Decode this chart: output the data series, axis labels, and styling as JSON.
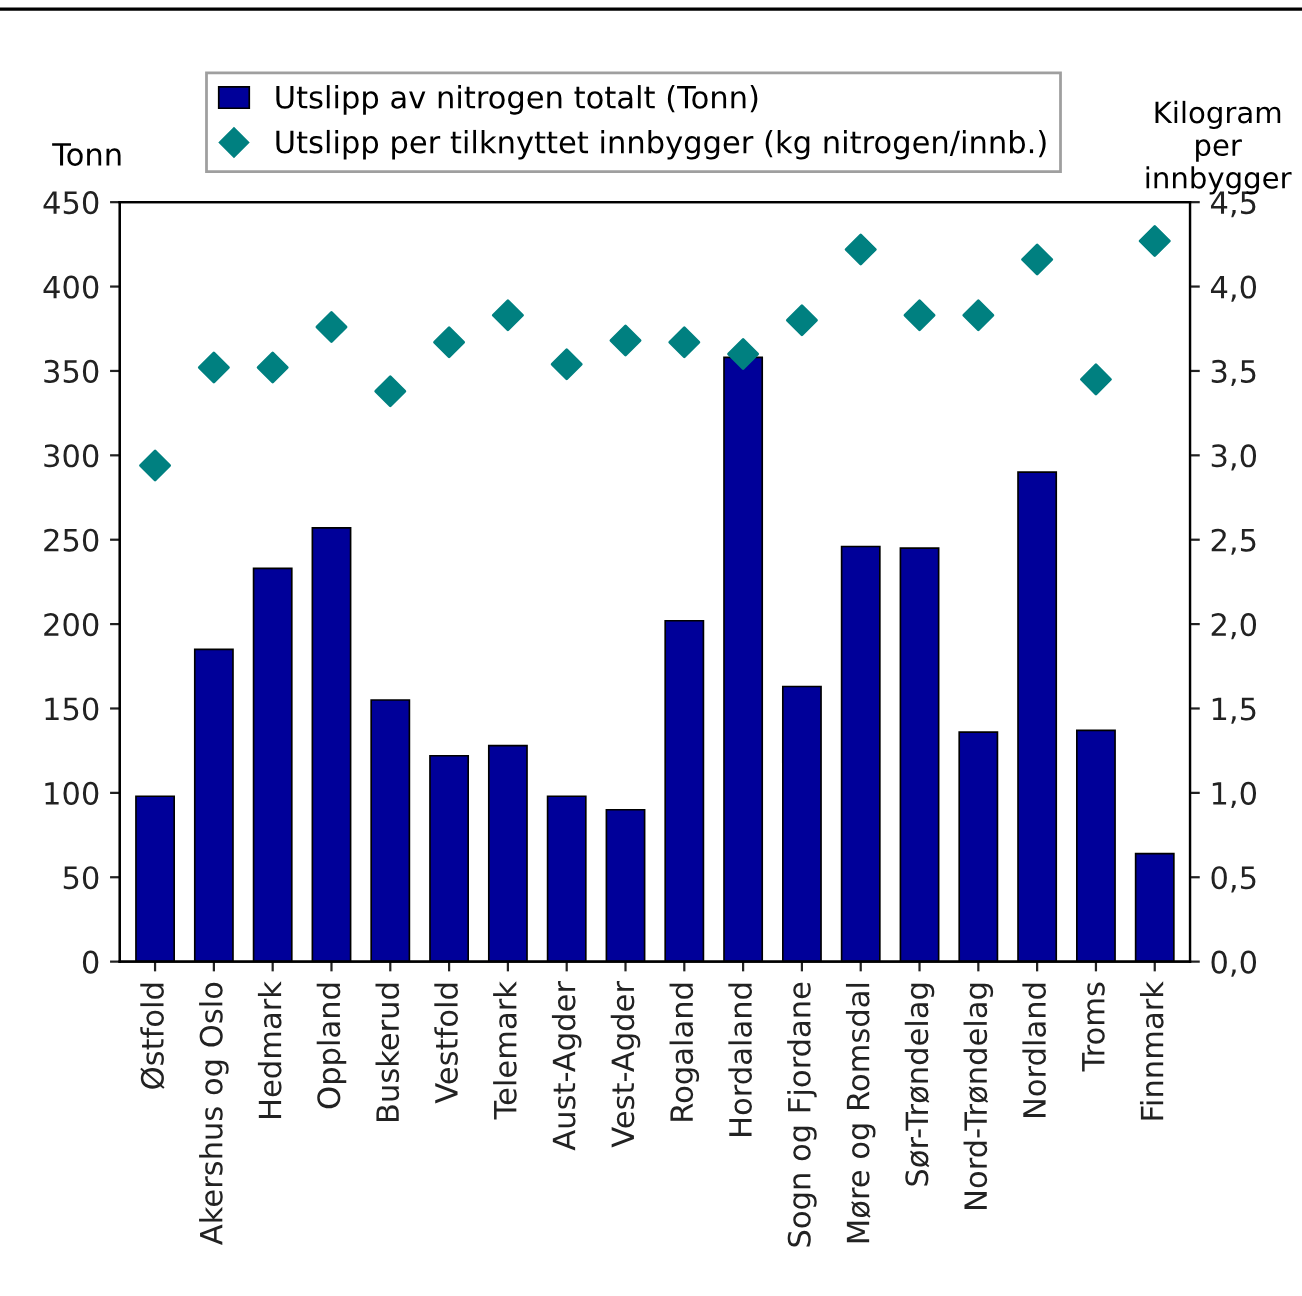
{
  "chart_data": {
    "type": "bar",
    "ylabel": "Tonn",
    "y2label": "Kilogram per innbygger",
    "categories": [
      "Østfold",
      "Akershus og Oslo",
      "Hedmark",
      "Oppland",
      "Buskerud",
      "Vestfold",
      "Telemark",
      "Aust-Agder",
      "Vest-Agder",
      "Rogaland",
      "Hordaland",
      "Sogn og Fjordane",
      "Møre og Romsdal",
      "Sør-Trøndelag",
      "Nord-Trøndelag",
      "Nordland",
      "Troms",
      "Finnmark"
    ],
    "series": [
      {
        "name": "Utslipp av nitrogen totalt (Tonn)",
        "color": "#000099",
        "values": [
          98,
          185,
          233,
          257,
          155,
          122,
          128,
          98,
          90,
          202,
          358,
          163,
          246,
          245,
          136,
          290,
          137,
          64
        ]
      },
      {
        "name": "Utslipp per tilknyttet innbygger (kg nitrogen/innb.)",
        "type": "scatter",
        "axis": "y2",
        "marker": "diamond",
        "color": "#008080",
        "values": [
          2.94,
          3.52,
          3.52,
          3.76,
          3.38,
          3.67,
          3.83,
          3.54,
          3.68,
          3.67,
          3.6,
          3.8,
          4.22,
          3.83,
          3.83,
          4.16,
          3.45,
          4.27
        ]
      }
    ],
    "ylim": [
      0,
      450
    ],
    "yticks": [
      0,
      50,
      100,
      150,
      200,
      250,
      300,
      350,
      400,
      450
    ],
    "y2lim": [
      0,
      4.5
    ],
    "y2ticks": [
      {
        "value": 0,
        "label": "0,0"
      },
      {
        "value": 0.5,
        "label": "0,5"
      },
      {
        "value": 1,
        "label": "1,0"
      },
      {
        "value": 1.5,
        "label": "1,5"
      },
      {
        "value": 2,
        "label": "2,0"
      },
      {
        "value": 2.5,
        "label": "2,5"
      },
      {
        "value": 3,
        "label": "3,0"
      },
      {
        "value": 3.5,
        "label": "3,5"
      },
      {
        "value": 4,
        "label": "4,0"
      },
      {
        "value": 4.5,
        "label": "4,5"
      }
    ],
    "grid": false,
    "legend": "top"
  }
}
